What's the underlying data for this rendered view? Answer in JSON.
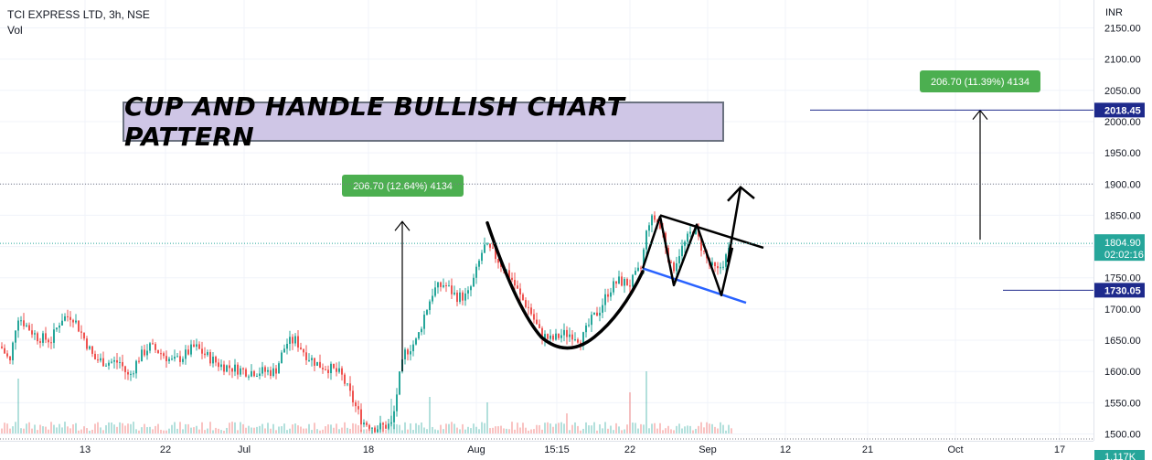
{
  "header": {
    "symbol": "TCI EXPRESS LTD, 3h, NSE",
    "volume_label": "Vol"
  },
  "pattern_title": "CUP AND HANDLE BULLISH CHART PATTERN",
  "colors": {
    "up": "#26a69a",
    "down": "#ef5350",
    "grid": "#f0f3fa",
    "axis_text": "#131722",
    "price_badge": "#26a69a",
    "level_line": "#1e2a8c",
    "measure_label": "#4caf50",
    "channel_lower": "#2962ff"
  },
  "chart_data": {
    "type": "candlestick",
    "currency_label": "INR",
    "ylim": [
      1490,
      2165
    ],
    "y_ticks": [
      1500,
      1550,
      1600,
      1650,
      1700,
      1750,
      1800,
      1850,
      1900,
      1950,
      2000,
      2050,
      2100,
      2150
    ],
    "x_ticks": [
      "13",
      "22",
      "Jul",
      "18",
      "Aug",
      "15:15",
      "22",
      "Sep",
      "12",
      "21",
      "Oct",
      "17"
    ],
    "current_price": "1804.90",
    "countdown": "02:02:16",
    "levels": [
      {
        "value": 2018.45,
        "label": "2018.45"
      },
      {
        "value": 1730.05,
        "label": "1730.05"
      }
    ],
    "measure_labels": [
      "206.70 (12.64%) 4134",
      "206.70 (11.39%) 4134"
    ],
    "volume_badge": "1.117K",
    "price_path": [
      [
        0,
        1640
      ],
      [
        10,
        1615
      ],
      [
        18,
        1690
      ],
      [
        30,
        1670
      ],
      [
        40,
        1655
      ],
      [
        55,
        1650
      ],
      [
        66,
        1685
      ],
      [
        78,
        1690
      ],
      [
        92,
        1650
      ],
      [
        102,
        1620
      ],
      [
        115,
        1615
      ],
      [
        130,
        1615
      ],
      [
        140,
        1590
      ],
      [
        150,
        1620
      ],
      [
        162,
        1640
      ],
      [
        175,
        1630
      ],
      [
        188,
        1615
      ],
      [
        200,
        1625
      ],
      [
        212,
        1640
      ],
      [
        225,
        1625
      ],
      [
        240,
        1610
      ],
      [
        255,
        1605
      ],
      [
        270,
        1600
      ],
      [
        285,
        1600
      ],
      [
        300,
        1600
      ],
      [
        312,
        1645
      ],
      [
        322,
        1650
      ],
      [
        335,
        1625
      ],
      [
        348,
        1610
      ],
      [
        360,
        1605
      ],
      [
        372,
        1595
      ],
      [
        383,
        1560
      ],
      [
        395,
        1520
      ],
      [
        410,
        1510
      ],
      [
        428,
        1515
      ],
      [
        435,
        1585
      ],
      [
        442,
        1630
      ],
      [
        455,
        1650
      ],
      [
        463,
        1690
      ],
      [
        473,
        1730
      ],
      [
        485,
        1740
      ],
      [
        498,
        1720
      ],
      [
        510,
        1720
      ],
      [
        518,
        1750
      ],
      [
        528,
        1800
      ],
      [
        538,
        1790
      ],
      [
        548,
        1770
      ],
      [
        558,
        1750
      ],
      [
        568,
        1720
      ],
      [
        578,
        1700
      ],
      [
        590,
        1660
      ],
      [
        602,
        1650
      ],
      [
        615,
        1660
      ],
      [
        625,
        1660
      ],
      [
        635,
        1650
      ],
      [
        645,
        1680
      ],
      [
        655,
        1700
      ],
      [
        665,
        1730
      ],
      [
        675,
        1745
      ],
      [
        688,
        1740
      ],
      [
        700,
        1765
      ],
      [
        708,
        1840
      ],
      [
        716,
        1845
      ],
      [
        724,
        1820
      ],
      [
        734,
        1760
      ],
      [
        742,
        1790
      ],
      [
        750,
        1810
      ],
      [
        758,
        1830
      ],
      [
        766,
        1800
      ],
      [
        775,
        1770
      ],
      [
        784,
        1760
      ],
      [
        792,
        1780
      ],
      [
        800,
        1805
      ]
    ],
    "volume_spikes": [
      [
        20,
        60
      ],
      [
        427,
        38
      ],
      [
        468,
        40
      ],
      [
        532,
        34
      ],
      [
        705,
        68
      ],
      [
        688,
        45
      ],
      [
        620,
        22
      ]
    ]
  }
}
